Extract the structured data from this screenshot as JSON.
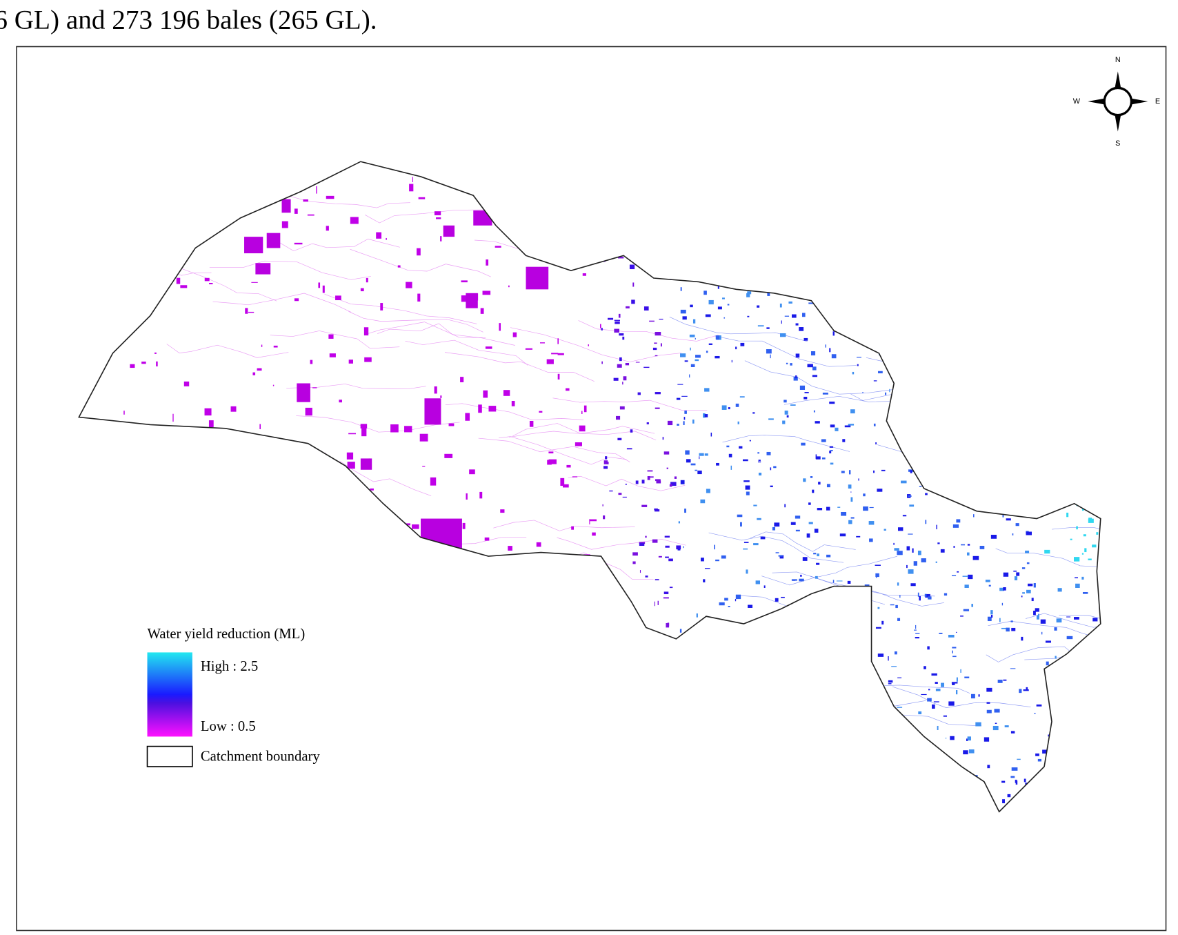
{
  "caption": "6 GL) and 273 196 bales (265 GL).",
  "map": {
    "compass": {
      "n": "N",
      "e": "E",
      "s": "S",
      "w": "W"
    },
    "legend": {
      "title": "Water yield reduction (ML)",
      "high": "High : 2.5",
      "low": "Low : 0.5",
      "boundary": "Catchment boundary"
    }
  }
}
